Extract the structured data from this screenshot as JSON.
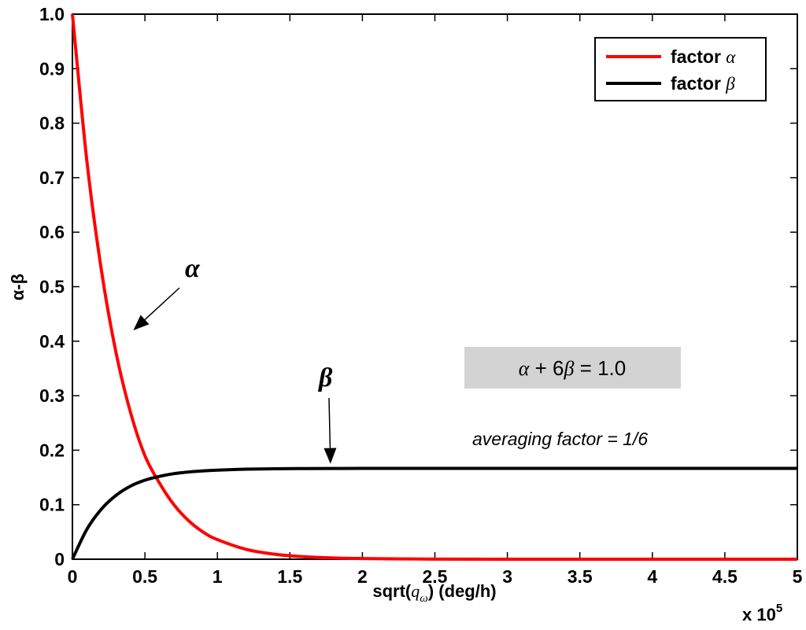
{
  "chart_data": {
    "type": "line",
    "title": "",
    "xlabel_prefix": "sqrt(",
    "xlabel_var": "q",
    "xlabel_sub": "ω",
    "xlabel_suffix": ") (deg/h)",
    "ylabel": "α-β",
    "xlim": [
      0,
      5
    ],
    "ylim": [
      0,
      1
    ],
    "x_multiplier": {
      "base": "x 10",
      "exponent": "5"
    },
    "x_ticks": [
      "0",
      "0.5",
      "1",
      "1.5",
      "2",
      "2.5",
      "3",
      "3.5",
      "4",
      "4.5",
      "5"
    ],
    "y_ticks": [
      "0",
      "0.1",
      "0.2",
      "0.3",
      "0.4",
      "0.5",
      "0.6",
      "0.7",
      "0.8",
      "0.9",
      "1.0"
    ],
    "grid": false,
    "legend_position": "top-right",
    "series": [
      {
        "name": "factor α",
        "legend_prefix": "factor ",
        "legend_symbol": "α",
        "color": "#ff0000",
        "x": [
          0,
          0.1,
          0.2,
          0.3,
          0.4,
          0.5,
          0.6,
          0.7,
          0.8,
          0.9,
          1.0,
          1.2,
          1.4,
          1.6,
          1.8,
          2.0,
          2.5,
          3.0,
          3.5,
          4.0,
          4.5,
          5.0
        ],
        "values": [
          1.0,
          0.73,
          0.53,
          0.38,
          0.27,
          0.19,
          0.14,
          0.1,
          0.071,
          0.05,
          0.036,
          0.018,
          0.009,
          0.0045,
          0.0023,
          0.0012,
          0.0002,
          0.0,
          0.0,
          0.0,
          0.0,
          0.0
        ]
      },
      {
        "name": "factor β",
        "legend_prefix": "factor ",
        "legend_symbol": "β",
        "color": "#000000",
        "x": [
          0,
          0.1,
          0.2,
          0.3,
          0.4,
          0.5,
          0.6,
          0.7,
          0.8,
          0.9,
          1.0,
          1.2,
          1.4,
          1.6,
          1.8,
          2.0,
          2.5,
          3.0,
          3.5,
          4.0,
          4.5,
          5.0
        ],
        "values": [
          0.0,
          0.055,
          0.092,
          0.117,
          0.134,
          0.145,
          0.152,
          0.157,
          0.16,
          0.162,
          0.1635,
          0.1652,
          0.166,
          0.1663,
          0.1665,
          0.1666,
          0.1667,
          0.1667,
          0.1667,
          0.1667,
          0.1667,
          0.1667
        ]
      }
    ],
    "annotations": {
      "alpha_label": "α",
      "alpha_arrow_to": {
        "x": 0.42,
        "y": 0.42
      },
      "beta_label": "β",
      "beta_arrow_to": {
        "x": 1.78,
        "y": 0.175
      },
      "equation": {
        "a": "α",
        "mid": " + 6",
        "b": "β",
        "end": " = 1.0"
      },
      "note": "averaging factor = 1/6"
    }
  }
}
